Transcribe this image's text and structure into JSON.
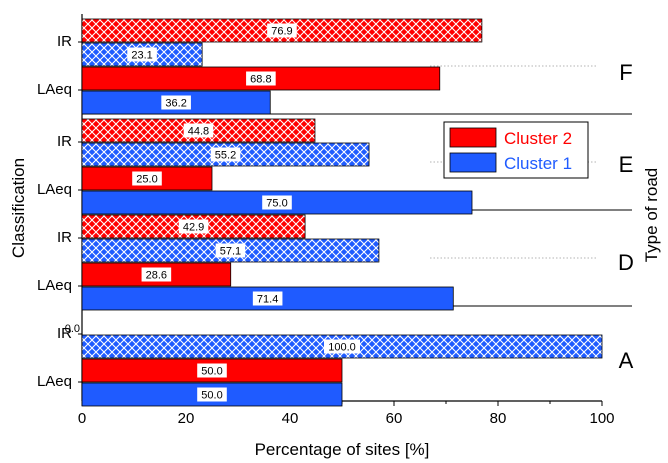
{
  "chart_data": {
    "type": "bar",
    "orientation": "horizontal",
    "xlabel": "Percentage of sites [%]",
    "ylabel": "Classification",
    "right_label": "Type of road",
    "xlim": [
      0,
      100
    ],
    "xticks": [
      "0",
      "20",
      "40",
      "60",
      "80",
      "100"
    ],
    "legend": {
      "placement": "center-right",
      "entries": [
        {
          "name": "Cluster 2",
          "color": "#ff0000"
        },
        {
          "name": "Cluster 1",
          "color": "#1f5bff"
        }
      ]
    },
    "series_colors": {
      "Cluster 2": "#ff0000",
      "Cluster 1": "#1f5bff"
    },
    "classification_patterns": {
      "IR": "crosshatch",
      "LAeq": "solid"
    },
    "groups": [
      {
        "road": "F",
        "rows": [
          {
            "classification": "IR",
            "Cluster 2": 76.9,
            "Cluster 1": 23.1,
            "labels": [
              "76.9",
              "23.1"
            ]
          },
          {
            "classification": "LAeq",
            "Cluster 2": 68.8,
            "Cluster 1": 36.2,
            "labels": [
              "68.8",
              "36.2"
            ]
          }
        ]
      },
      {
        "road": "E",
        "rows": [
          {
            "classification": "IR",
            "Cluster 2": 44.8,
            "Cluster 1": 55.2,
            "labels": [
              "44.8",
              "55.2"
            ]
          },
          {
            "classification": "LAeq",
            "Cluster 2": 25.0,
            "Cluster 1": 75.0,
            "labels": [
              "25.0",
              "75.0"
            ]
          }
        ]
      },
      {
        "road": "D",
        "rows": [
          {
            "classification": "IR",
            "Cluster 2": 42.9,
            "Cluster 1": 57.1,
            "labels": [
              "42.9",
              "57.1"
            ]
          },
          {
            "classification": "LAeq",
            "Cluster 2": 28.6,
            "Cluster 1": 71.4,
            "labels": [
              "28.6",
              "71.4"
            ]
          }
        ]
      },
      {
        "road": "A",
        "rows": [
          {
            "classification": "IR",
            "Cluster 2": 0.0,
            "Cluster 1": 100.0,
            "labels": [
              "0.0",
              "100.0"
            ]
          },
          {
            "classification": "LAeq",
            "Cluster 2": 50.0,
            "Cluster 1": 50.0,
            "labels": [
              "50.0",
              "50.0"
            ]
          }
        ]
      }
    ]
  }
}
